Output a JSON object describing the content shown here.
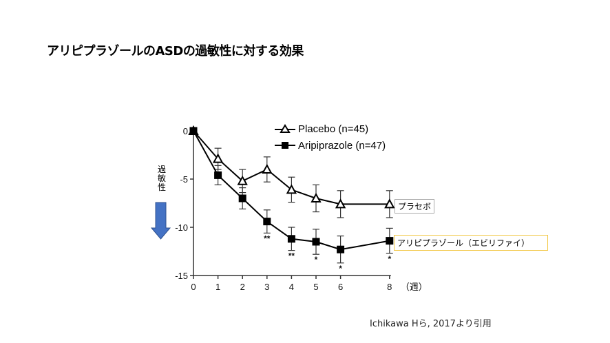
{
  "title": "アリピプラゾールのASDの過敏性に対する効果",
  "y_side_label": "過敏性",
  "citation": "Ichikawa Hら, 2017より引用",
  "labels": {
    "placebo_box": "プラセボ",
    "aripiprazole_box": "アリピプラゾール（エビリファイ）",
    "x_unit": "（週）"
  },
  "legend": {
    "placebo": "Placebo (n=45)",
    "aripiprazole": "Aripiprazole (n=47)"
  },
  "colors": {
    "arrow": "#4472c4",
    "arrow_border": "#2f528f",
    "aripiprazole_box_border": "#f2c744",
    "placebo_box_border": "#aaaaaa"
  },
  "chart_data": {
    "type": "line",
    "title": "アリピプラゾールのASDの過敏性に対する効果",
    "xlabel": "（週）",
    "ylabel": "過敏性",
    "x": [
      0,
      1,
      2,
      3,
      4,
      5,
      6,
      8
    ],
    "x_ticks": [
      0,
      1,
      2,
      3,
      4,
      5,
      6,
      8
    ],
    "y_ticks": [
      0,
      -5,
      -10,
      -15
    ],
    "xlim": [
      0,
      8
    ],
    "ylim": [
      -15,
      0
    ],
    "grid": false,
    "legend_position": "top-right",
    "series": [
      {
        "name": "Placebo (n=45)",
        "marker": "open-triangle",
        "values": [
          0,
          -2.9,
          -5.2,
          -4.0,
          -6.1,
          -7.0,
          -7.6,
          -7.6
        ],
        "error": [
          0,
          1.1,
          1.2,
          1.3,
          1.3,
          1.4,
          1.4,
          1.4
        ]
      },
      {
        "name": "Aripiprazole (n=47)",
        "marker": "filled-square",
        "values": [
          0,
          -4.6,
          -7.0,
          -9.4,
          -11.2,
          -11.5,
          -12.3,
          -11.4
        ],
        "error": [
          0,
          1.0,
          1.1,
          1.2,
          1.2,
          1.3,
          1.4,
          1.3
        ],
        "significance": [
          "",
          "",
          "",
          "**",
          "**",
          "*",
          "*",
          "*"
        ]
      }
    ]
  }
}
